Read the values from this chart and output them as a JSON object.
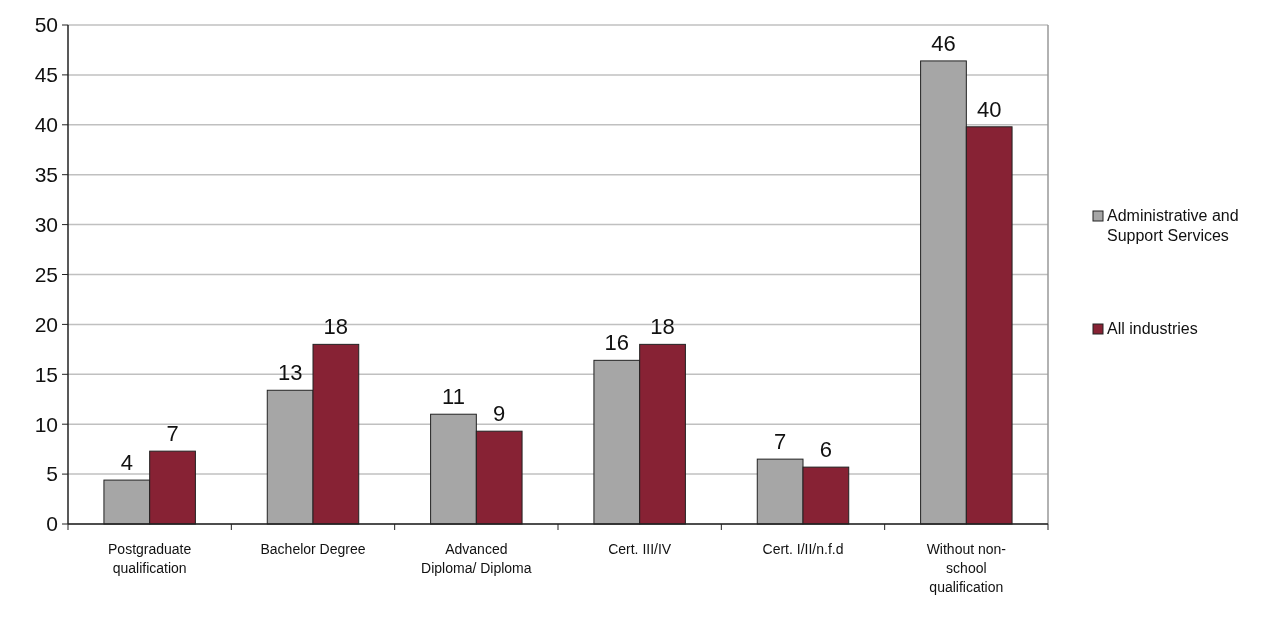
{
  "chart_data": {
    "type": "bar",
    "categories": [
      "Postgraduate qualification",
      "Bachelor Degree",
      "Advanced Diploma/ Diploma",
      "Cert. III/IV",
      "Cert. I/II/n.f.d",
      "Without non-school qualification"
    ],
    "series": [
      {
        "name": "Administrative and Support Services",
        "color": "#a6a6a6",
        "values": [
          4.4,
          13.4,
          11,
          16.4,
          6.5,
          46.4
        ],
        "value_labels": [
          "4",
          "13",
          "11",
          "16",
          "7",
          "46"
        ]
      },
      {
        "name": "All industries",
        "color": "#872234",
        "values": [
          7.3,
          18,
          9.3,
          18,
          5.7,
          39.8
        ],
        "value_labels": [
          "7",
          "18",
          "9",
          "18",
          "6",
          "40"
        ]
      }
    ],
    "ylim": [
      0,
      50
    ],
    "yticks": [
      0,
      5,
      10,
      15,
      20,
      25,
      30,
      35,
      40,
      45,
      50
    ],
    "grid": "y",
    "legend": "right"
  }
}
